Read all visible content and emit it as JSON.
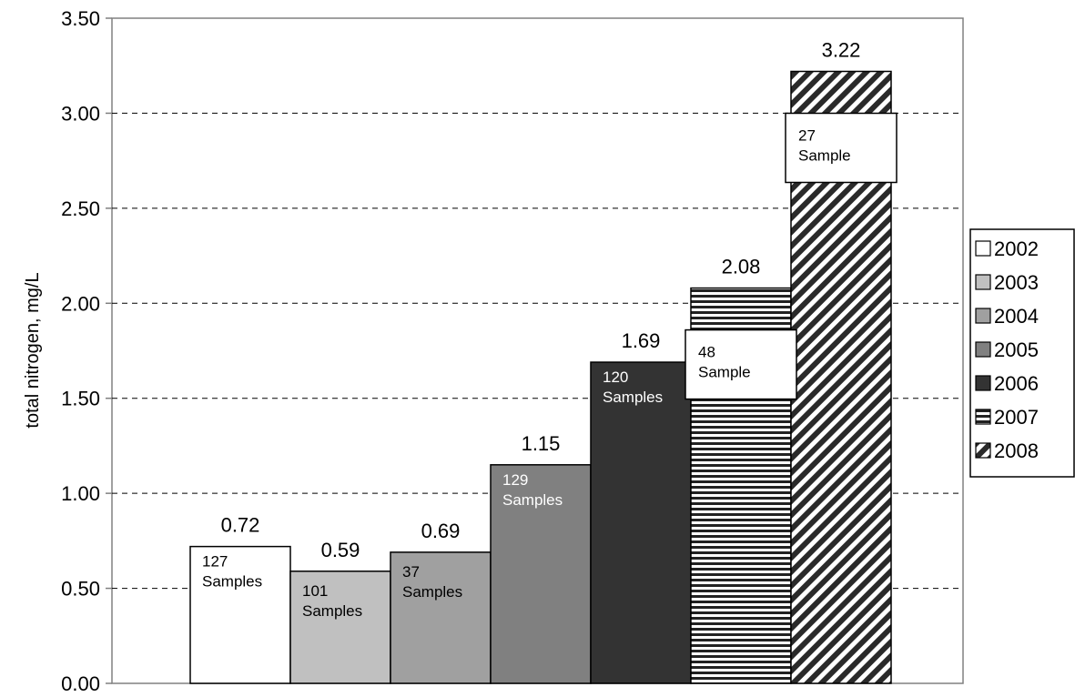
{
  "chart_data": {
    "type": "bar",
    "title": "",
    "xlabel": "",
    "ylabel": "total nitrogen, mg/L",
    "ylim": [
      0,
      3.5
    ],
    "yticks": [
      "0.00",
      "0.50",
      "1.00",
      "1.50",
      "2.00",
      "2.50",
      "3.00",
      "3.50"
    ],
    "grid": "horizontal dashed",
    "legend_position": "right",
    "series": [
      {
        "name": "2002",
        "value": 0.72,
        "value_label": "0.72",
        "samples": [
          "127",
          "Samples"
        ],
        "fill": "#ffffff",
        "pattern": "solid",
        "sample_style": "inside-dark",
        "sample_box": false
      },
      {
        "name": "2003",
        "value": 0.59,
        "value_label": "0.59",
        "samples": [
          "101",
          "Samples"
        ],
        "fill": "#c0c0c0",
        "pattern": "solid",
        "sample_style": "inside-dark",
        "sample_box": false
      },
      {
        "name": "2004",
        "value": 0.69,
        "value_label": "0.69",
        "samples": [
          "37",
          "Samples"
        ],
        "fill": "#a0a0a0",
        "pattern": "solid",
        "sample_style": "inside-dark",
        "sample_box": false
      },
      {
        "name": "2005",
        "value": 1.15,
        "value_label": "1.15",
        "samples": [
          "129",
          "Samples"
        ],
        "fill": "#808080",
        "pattern": "solid",
        "sample_style": "inside-light",
        "sample_box": false
      },
      {
        "name": "2006",
        "value": 1.69,
        "value_label": "1.69",
        "samples": [
          "120",
          "Samples"
        ],
        "fill": "#333333",
        "pattern": "solid",
        "sample_style": "inside-light",
        "sample_box": false
      },
      {
        "name": "2007",
        "value": 2.08,
        "value_label": "2.08",
        "samples": [
          "48",
          "Sample"
        ],
        "fill": "#ffffff",
        "pattern": "hstripes",
        "sample_style": "boxed",
        "sample_box": true
      },
      {
        "name": "2008",
        "value": 3.22,
        "value_label": "3.22",
        "samples": [
          "27",
          "Sample"
        ],
        "fill": "#ffffff",
        "pattern": "diagonal",
        "sample_style": "boxed",
        "sample_box": true
      }
    ]
  }
}
